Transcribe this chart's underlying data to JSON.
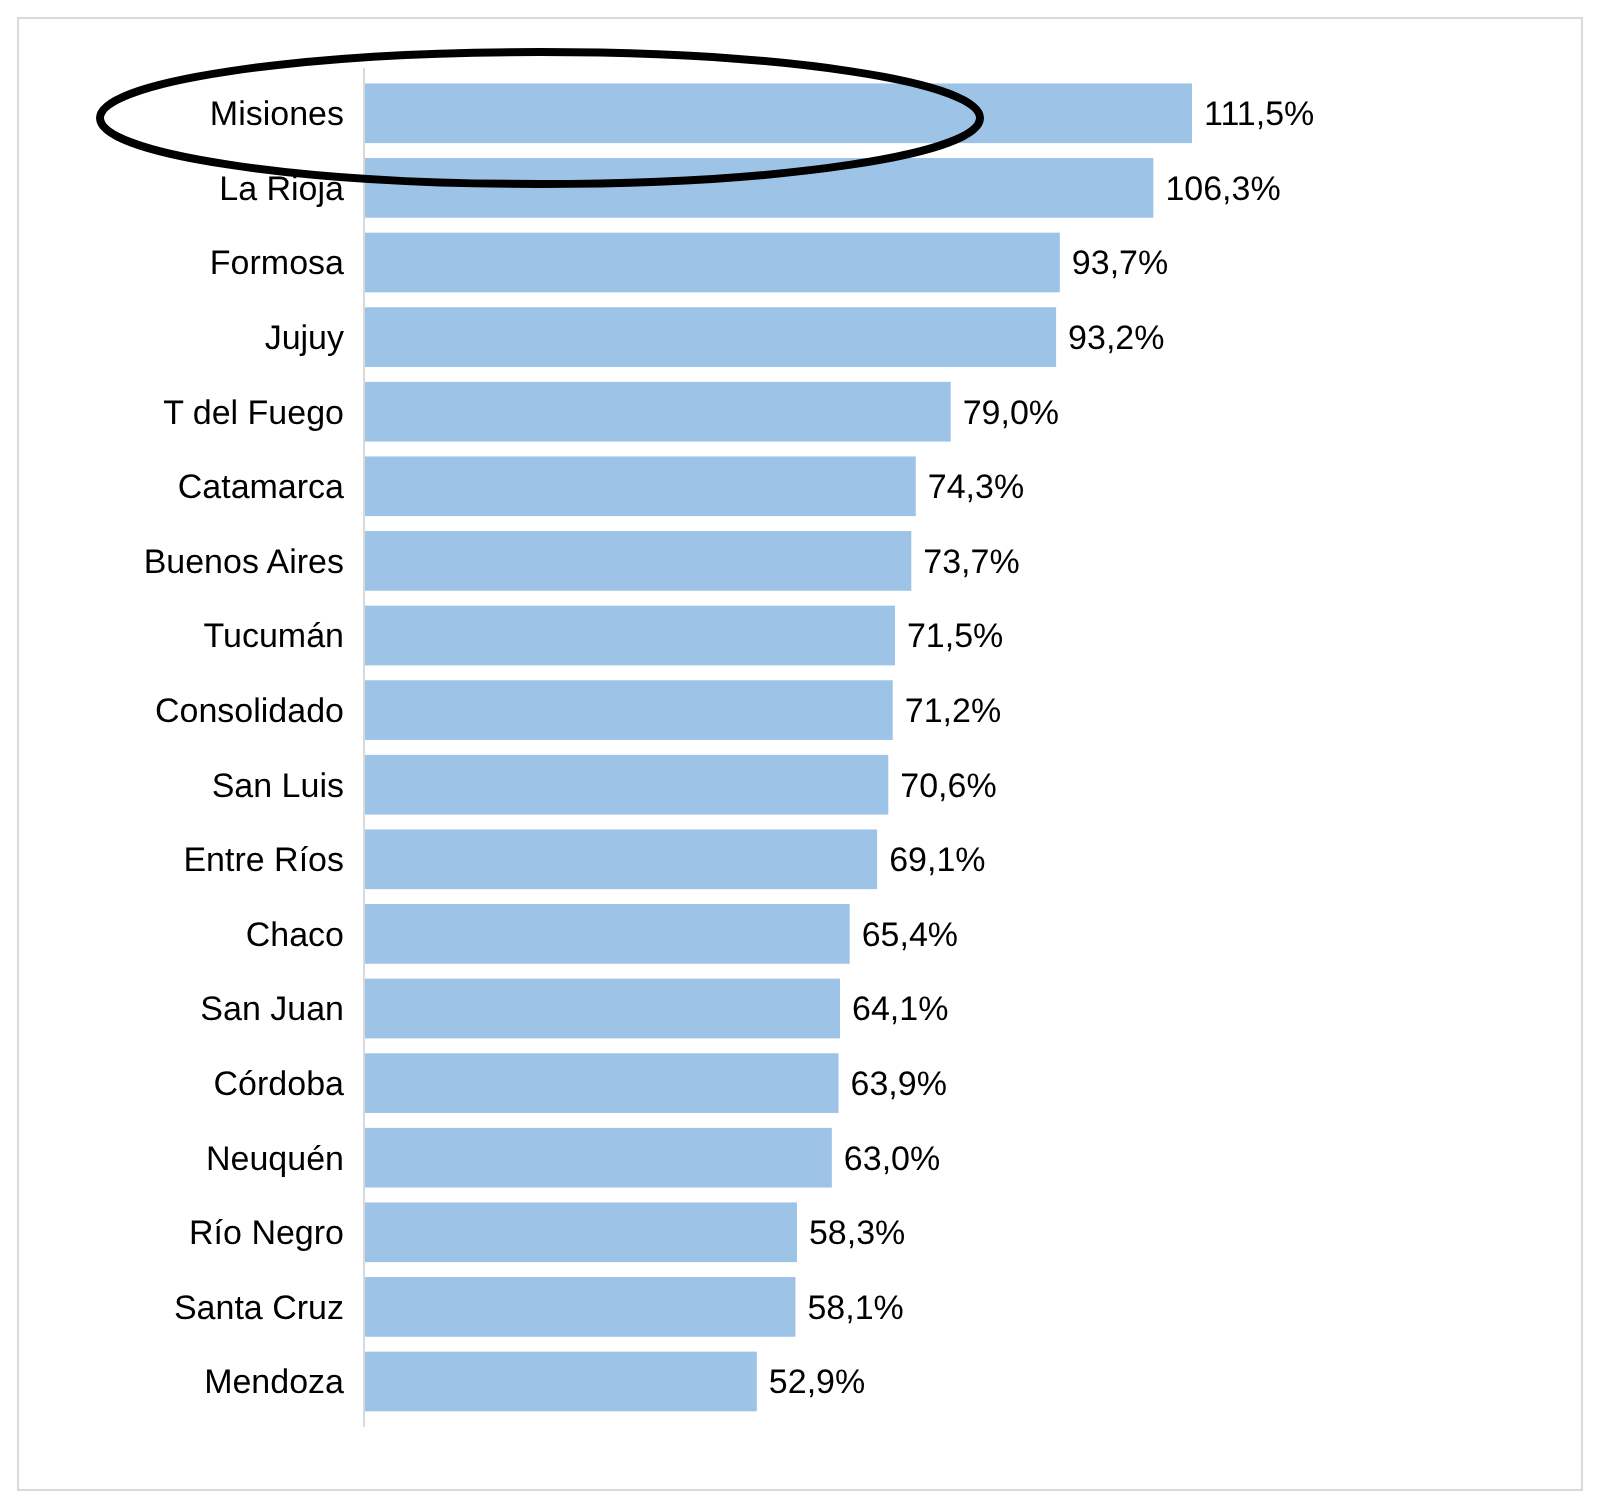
{
  "chart_data": {
    "type": "bar",
    "orientation": "horizontal",
    "categories": [
      "Misiones",
      "La Rioja",
      "Formosa",
      "Jujuy",
      "T del Fuego",
      "Catamarca",
      "Buenos Aires",
      "Tucumán",
      "Consolidado",
      "San Luis",
      "Entre Ríos",
      "Chaco",
      "San Juan",
      "Córdoba",
      "Neuquén",
      "Río Negro",
      "Santa Cruz",
      "Mendoza"
    ],
    "values": [
      111.5,
      106.3,
      93.7,
      93.2,
      79.0,
      74.3,
      73.7,
      71.5,
      71.2,
      70.6,
      69.1,
      65.4,
      64.1,
      63.9,
      63.0,
      58.3,
      58.1,
      52.9
    ],
    "value_labels": [
      "111,5%",
      "106,3%",
      "93,7%",
      "93,2%",
      "79,0%",
      "74,3%",
      "73,7%",
      "71,5%",
      "71,2%",
      "70,6%",
      "69,1%",
      "65,4%",
      "64,1%",
      "63,9%",
      "63,0%",
      "58,3%",
      "58,1%",
      "52,9%"
    ],
    "color": "#9dc3e6"
  }
}
